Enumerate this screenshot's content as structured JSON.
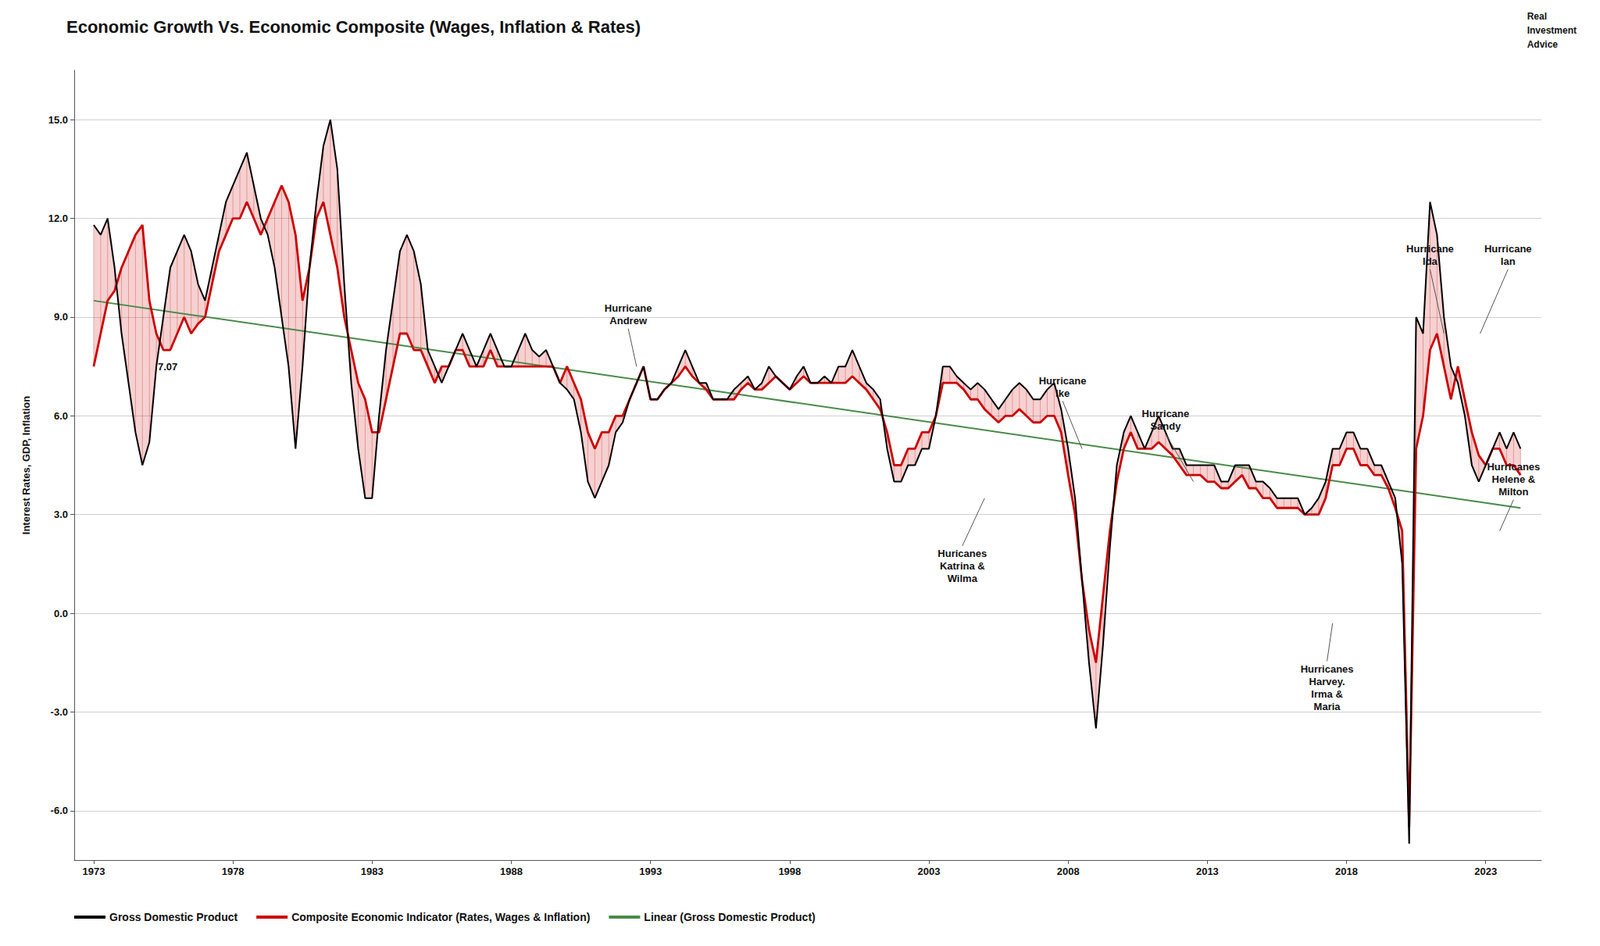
{
  "chart_data": {
    "type": "line",
    "title": "Economic Growth Vs. Economic Composite (Wages, Inflation & Rates)",
    "ylabel": "Interest Rates, GDP, Inflation",
    "xlim": [
      1972.3,
      2025.0
    ],
    "xticks": [
      1973,
      1978,
      1983,
      1988,
      1993,
      1998,
      2003,
      2008,
      2013,
      2018,
      2023
    ],
    "ylim": [
      -7.5,
      16.5
    ],
    "yticks": [
      {
        "value": 15.0,
        "label": "15.0"
      },
      {
        "value": 12.0,
        "label": "12.0"
      },
      {
        "value": 9.0,
        "label": "9.0"
      },
      {
        "value": 6.0,
        "label": "6.0"
      },
      {
        "value": 3.0,
        "label": "3.0"
      },
      {
        "value": 0.0,
        "label": "0.0"
      },
      {
        "value": -3.0,
        "label": "-3.0"
      },
      {
        "value": -6.0,
        "label": "-6.0"
      }
    ],
    "grid": "y",
    "legend": "lower left",
    "x": [
      1973.0,
      1973.25,
      1973.5,
      1973.75,
      1974.0,
      1974.25,
      1974.5,
      1974.75,
      1975.0,
      1975.25,
      1975.5,
      1975.75,
      1976.0,
      1976.25,
      1976.5,
      1976.75,
      1977.0,
      1977.25,
      1977.5,
      1977.75,
      1978.0,
      1978.25,
      1978.5,
      1978.75,
      1979.0,
      1979.25,
      1979.5,
      1979.75,
      1980.0,
      1980.25,
      1980.5,
      1980.75,
      1981.0,
      1981.25,
      1981.5,
      1981.75,
      1982.0,
      1982.25,
      1982.5,
      1982.75,
      1983.0,
      1983.25,
      1983.5,
      1983.75,
      1984.0,
      1984.25,
      1984.5,
      1984.75,
      1985.0,
      1985.25,
      1985.5,
      1985.75,
      1986.0,
      1986.25,
      1986.5,
      1986.75,
      1987.0,
      1987.25,
      1987.5,
      1987.75,
      1988.0,
      1988.25,
      1988.5,
      1988.75,
      1989.0,
      1989.25,
      1989.5,
      1989.75,
      1990.0,
      1990.25,
      1990.5,
      1990.75,
      1991.0,
      1991.25,
      1991.5,
      1991.75,
      1992.0,
      1992.25,
      1992.5,
      1992.75,
      1993.0,
      1993.25,
      1993.5,
      1993.75,
      1994.0,
      1994.25,
      1994.5,
      1994.75,
      1995.0,
      1995.25,
      1995.5,
      1995.75,
      1996.0,
      1996.25,
      1996.5,
      1996.75,
      1997.0,
      1997.25,
      1997.5,
      1997.75,
      1998.0,
      1998.25,
      1998.5,
      1998.75,
      1999.0,
      1999.25,
      1999.5,
      1999.75,
      2000.0,
      2000.25,
      2000.5,
      2000.75,
      2001.0,
      2001.25,
      2001.5,
      2001.75,
      2002.0,
      2002.25,
      2002.5,
      2002.75,
      2003.0,
      2003.25,
      2003.5,
      2003.75,
      2004.0,
      2004.25,
      2004.5,
      2004.75,
      2005.0,
      2005.25,
      2005.5,
      2005.75,
      2006.0,
      2006.25,
      2006.5,
      2006.75,
      2007.0,
      2007.25,
      2007.5,
      2007.75,
      2008.0,
      2008.25,
      2008.5,
      2008.75,
      2009.0,
      2009.25,
      2009.5,
      2009.75,
      2010.0,
      2010.25,
      2010.5,
      2010.75,
      2011.0,
      2011.25,
      2011.5,
      2011.75,
      2012.0,
      2012.25,
      2012.5,
      2012.75,
      2013.0,
      2013.25,
      2013.5,
      2013.75,
      2014.0,
      2014.25,
      2014.5,
      2014.75,
      2015.0,
      2015.25,
      2015.5,
      2015.75,
      2016.0,
      2016.25,
      2016.5,
      2016.75,
      2017.0,
      2017.25,
      2017.5,
      2017.75,
      2018.0,
      2018.25,
      2018.5,
      2018.75,
      2019.0,
      2019.25,
      2019.5,
      2019.75,
      2020.0,
      2020.25,
      2020.5,
      2020.75,
      2021.0,
      2021.25,
      2021.5,
      2021.75,
      2022.0,
      2022.25,
      2022.5,
      2022.75,
      2023.0,
      2023.25,
      2023.5,
      2023.75,
      2024.0,
      2024.25
    ],
    "series": [
      {
        "name": "Gross Domestic Product",
        "color": "#000000",
        "values": [
          11.8,
          11.5,
          12.0,
          10.5,
          8.5,
          7.0,
          5.5,
          4.5,
          5.2,
          7.5,
          9.0,
          10.5,
          11.0,
          11.5,
          11.0,
          10.0,
          9.5,
          10.5,
          11.5,
          12.5,
          13.0,
          13.5,
          14.0,
          13.0,
          12.0,
          11.5,
          10.5,
          9.0,
          7.5,
          5.0,
          7.5,
          10.5,
          12.5,
          14.2,
          15.0,
          13.5,
          10.0,
          7.0,
          5.0,
          3.5,
          3.5,
          6.0,
          8.0,
          9.5,
          11.0,
          11.5,
          11.0,
          10.0,
          8.0,
          7.5,
          7.0,
          7.5,
          8.0,
          8.5,
          8.0,
          7.5,
          8.0,
          8.5,
          8.0,
          7.5,
          7.5,
          8.0,
          8.5,
          8.0,
          7.8,
          8.0,
          7.5,
          7.0,
          6.8,
          6.5,
          5.5,
          4.0,
          3.5,
          4.0,
          4.5,
          5.5,
          5.8,
          6.5,
          7.0,
          7.5,
          6.5,
          6.5,
          6.8,
          7.0,
          7.5,
          8.0,
          7.5,
          7.0,
          7.0,
          6.5,
          6.5,
          6.5,
          6.8,
          7.0,
          7.2,
          6.8,
          7.0,
          7.5,
          7.2,
          7.0,
          6.8,
          7.2,
          7.5,
          7.0,
          7.0,
          7.2,
          7.0,
          7.5,
          7.5,
          8.0,
          7.5,
          7.0,
          6.8,
          6.5,
          5.0,
          4.0,
          4.0,
          4.5,
          4.5,
          5.0,
          5.0,
          6.0,
          7.5,
          7.5,
          7.2,
          7.0,
          6.8,
          7.0,
          6.8,
          6.5,
          6.2,
          6.5,
          6.8,
          7.0,
          6.8,
          6.5,
          6.5,
          6.8,
          7.0,
          6.2,
          5.0,
          3.5,
          1.0,
          -1.5,
          -3.5,
          -1.0,
          2.0,
          4.5,
          5.5,
          6.0,
          5.5,
          5.0,
          5.5,
          6.0,
          5.5,
          5.0,
          5.0,
          4.5,
          4.5,
          4.5,
          4.5,
          4.5,
          4.0,
          4.0,
          4.5,
          4.5,
          4.5,
          4.0,
          4.0,
          3.8,
          3.5,
          3.5,
          3.5,
          3.5,
          3.0,
          3.2,
          3.5,
          4.0,
          5.0,
          5.0,
          5.5,
          5.5,
          5.0,
          5.0,
          4.5,
          4.5,
          4.0,
          3.5,
          1.5,
          -7.0,
          9.0,
          8.5,
          12.5,
          11.5,
          9.0,
          7.5,
          7.0,
          6.0,
          4.5,
          4.0,
          4.5,
          5.0,
          5.5,
          5.0,
          5.5,
          5.0
        ]
      },
      {
        "name": "Composite Economic Indicator (Rates, Wages & Inflation)",
        "color": "#cc0000",
        "values": [
          7.5,
          8.5,
          9.5,
          9.8,
          10.5,
          11.0,
          11.5,
          11.8,
          9.5,
          8.5,
          8.0,
          8.0,
          8.5,
          9.0,
          8.5,
          8.8,
          9.0,
          10.0,
          11.0,
          11.5,
          12.0,
          12.0,
          12.5,
          12.0,
          11.5,
          12.0,
          12.5,
          13.0,
          12.5,
          11.5,
          9.5,
          10.5,
          12.0,
          12.5,
          11.5,
          10.5,
          9.0,
          8.0,
          7.0,
          6.5,
          5.5,
          5.5,
          6.5,
          7.5,
          8.5,
          8.5,
          8.0,
          8.0,
          7.5,
          7.0,
          7.5,
          7.5,
          8.0,
          8.0,
          7.5,
          7.5,
          7.5,
          8.0,
          7.5,
          7.5,
          7.5,
          7.5,
          7.5,
          7.5,
          7.5,
          7.5,
          7.5,
          7.0,
          7.5,
          7.0,
          6.5,
          5.5,
          5.0,
          5.5,
          5.5,
          6.0,
          6.0,
          6.5,
          7.0,
          7.5,
          6.5,
          6.5,
          6.8,
          7.0,
          7.2,
          7.5,
          7.2,
          7.0,
          6.8,
          6.5,
          6.5,
          6.5,
          6.5,
          6.8,
          7.0,
          6.8,
          6.8,
          7.0,
          7.2,
          7.0,
          6.8,
          7.0,
          7.2,
          7.0,
          7.0,
          7.0,
          7.0,
          7.0,
          7.0,
          7.2,
          7.0,
          6.8,
          6.5,
          6.2,
          5.5,
          4.5,
          4.5,
          5.0,
          5.0,
          5.5,
          5.5,
          6.0,
          7.0,
          7.0,
          7.0,
          6.8,
          6.5,
          6.5,
          6.2,
          6.0,
          5.8,
          6.0,
          6.0,
          6.2,
          6.0,
          5.8,
          5.8,
          6.0,
          6.0,
          5.5,
          4.2,
          3.0,
          1.0,
          -0.5,
          -1.5,
          0.5,
          2.5,
          4.0,
          5.0,
          5.5,
          5.0,
          5.0,
          5.0,
          5.2,
          5.0,
          4.8,
          4.5,
          4.2,
          4.2,
          4.2,
          4.0,
          4.0,
          3.8,
          3.8,
          4.0,
          4.2,
          3.8,
          3.8,
          3.5,
          3.5,
          3.2,
          3.2,
          3.2,
          3.2,
          3.0,
          3.0,
          3.0,
          3.5,
          4.5,
          4.5,
          5.0,
          5.0,
          4.5,
          4.5,
          4.2,
          4.2,
          3.8,
          3.2,
          2.5,
          -6.5,
          5.0,
          6.0,
          8.0,
          8.5,
          7.5,
          6.5,
          7.5,
          6.5,
          5.5,
          4.8,
          4.5,
          5.0,
          5.0,
          4.5,
          4.5,
          4.2
        ]
      },
      {
        "name": "Linear (Gross Domestic Product)",
        "color": "#4a8a4a",
        "x": [
          1973.0,
          2024.25
        ],
        "values": [
          9.5,
          3.2
        ]
      }
    ],
    "annotations": [
      {
        "text": "7.07",
        "x": 1975.3,
        "y": 7.3
      },
      {
        "text": "Hurricane\nAndrew",
        "x": 1992.2,
        "y": 8.7,
        "arrow_x": 1992.5,
        "arrow_y": 7.5
      },
      {
        "text": "Huricanes\nKatrina &\nWilma",
        "x": 2004.2,
        "y": 2.0,
        "arrow_x": 2005.0,
        "arrow_y": 3.5
      },
      {
        "text": "Hurricane\nIke",
        "x": 2007.8,
        "y": 6.5,
        "arrow_x": 2008.5,
        "arrow_y": 5.0
      },
      {
        "text": "Hurricane\nSandy",
        "x": 2011.5,
        "y": 5.5,
        "arrow_x": 2012.5,
        "arrow_y": 4.0
      },
      {
        "text": "Hurricane\nIda",
        "x": 2021.0,
        "y": 10.5,
        "arrow_x": 2021.5,
        "arrow_y": 8.5
      },
      {
        "text": "Hurricane\nIan",
        "x": 2023.8,
        "y": 10.5,
        "arrow_x": 2022.8,
        "arrow_y": 8.5
      },
      {
        "text": "Hurricanes\nHarvey.\nIrma &\nMaria",
        "x": 2017.3,
        "y": -1.5,
        "arrow_x": 2017.5,
        "arrow_y": -0.3
      },
      {
        "text": "Hurricanes\nHelene &\nMilton",
        "x": 2024.0,
        "y": 3.5,
        "arrow_x": 2023.5,
        "arrow_y": 2.5
      },
      {
        "text": "Real\nInvestment\nAdvice"
      }
    ]
  }
}
